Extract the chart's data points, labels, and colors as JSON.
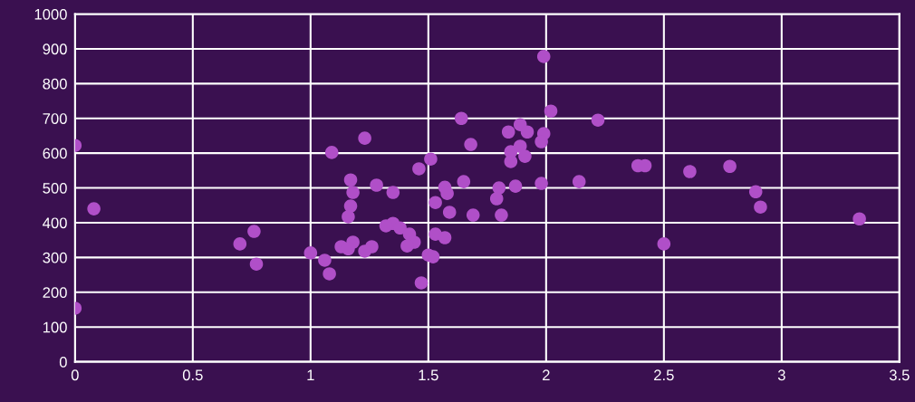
{
  "chart_data": {
    "type": "scatter",
    "marker": "circle",
    "grid": true,
    "xlim": [
      0,
      3.5
    ],
    "ylim": [
      0,
      1000
    ],
    "xticks": [
      0,
      0.5,
      1,
      1.5,
      2,
      2.5,
      3,
      3.5
    ],
    "yticks": [
      0,
      100,
      200,
      300,
      400,
      500,
      600,
      700,
      800,
      900,
      1000
    ],
    "series": [
      {
        "color": "#b04fc8",
        "x": [
          0,
          0,
          0.08,
          0.7,
          0.76,
          0.77,
          1.0,
          1.06,
          1.08,
          1.09,
          1.23,
          1.51,
          1.46,
          1.17,
          1.28,
          1.35,
          1.18,
          1.17,
          1.16,
          1.57,
          1.58,
          1.53,
          1.59,
          1.35,
          1.32,
          1.38,
          1.42,
          1.44,
          1.41,
          1.53,
          1.57,
          1.13,
          1.18,
          1.16,
          1.26,
          1.23,
          1.5,
          1.52,
          1.47,
          1.99,
          2.02,
          2.22,
          1.64,
          1.89,
          1.84,
          1.92,
          1.99,
          1.98,
          1.68,
          1.89,
          1.85,
          1.91,
          1.85,
          1.65,
          1.87,
          1.98,
          2.14,
          1.8,
          1.79,
          1.69,
          1.81,
          2.39,
          2.42,
          2.61,
          2.78,
          2.89,
          2.91,
          3.33,
          2.5
        ],
        "values": [
          622,
          154,
          440,
          339,
          375,
          281,
          313,
          292,
          253,
          602,
          643,
          583,
          555,
          523,
          508,
          487,
          487,
          448,
          417,
          502,
          484,
          458,
          430,
          398,
          391,
          385,
          367,
          344,
          333,
          367,
          357,
          331,
          344,
          325,
          331,
          318,
          307,
          302,
          227,
          878,
          721,
          695,
          700,
          682,
          661,
          661,
          656,
          633,
          625,
          620,
          604,
          591,
          576,
          518,
          505,
          513,
          518,
          500,
          469,
          422,
          422,
          564,
          564,
          547,
          562,
          489,
          445,
          411,
          339
        ]
      }
    ]
  }
}
